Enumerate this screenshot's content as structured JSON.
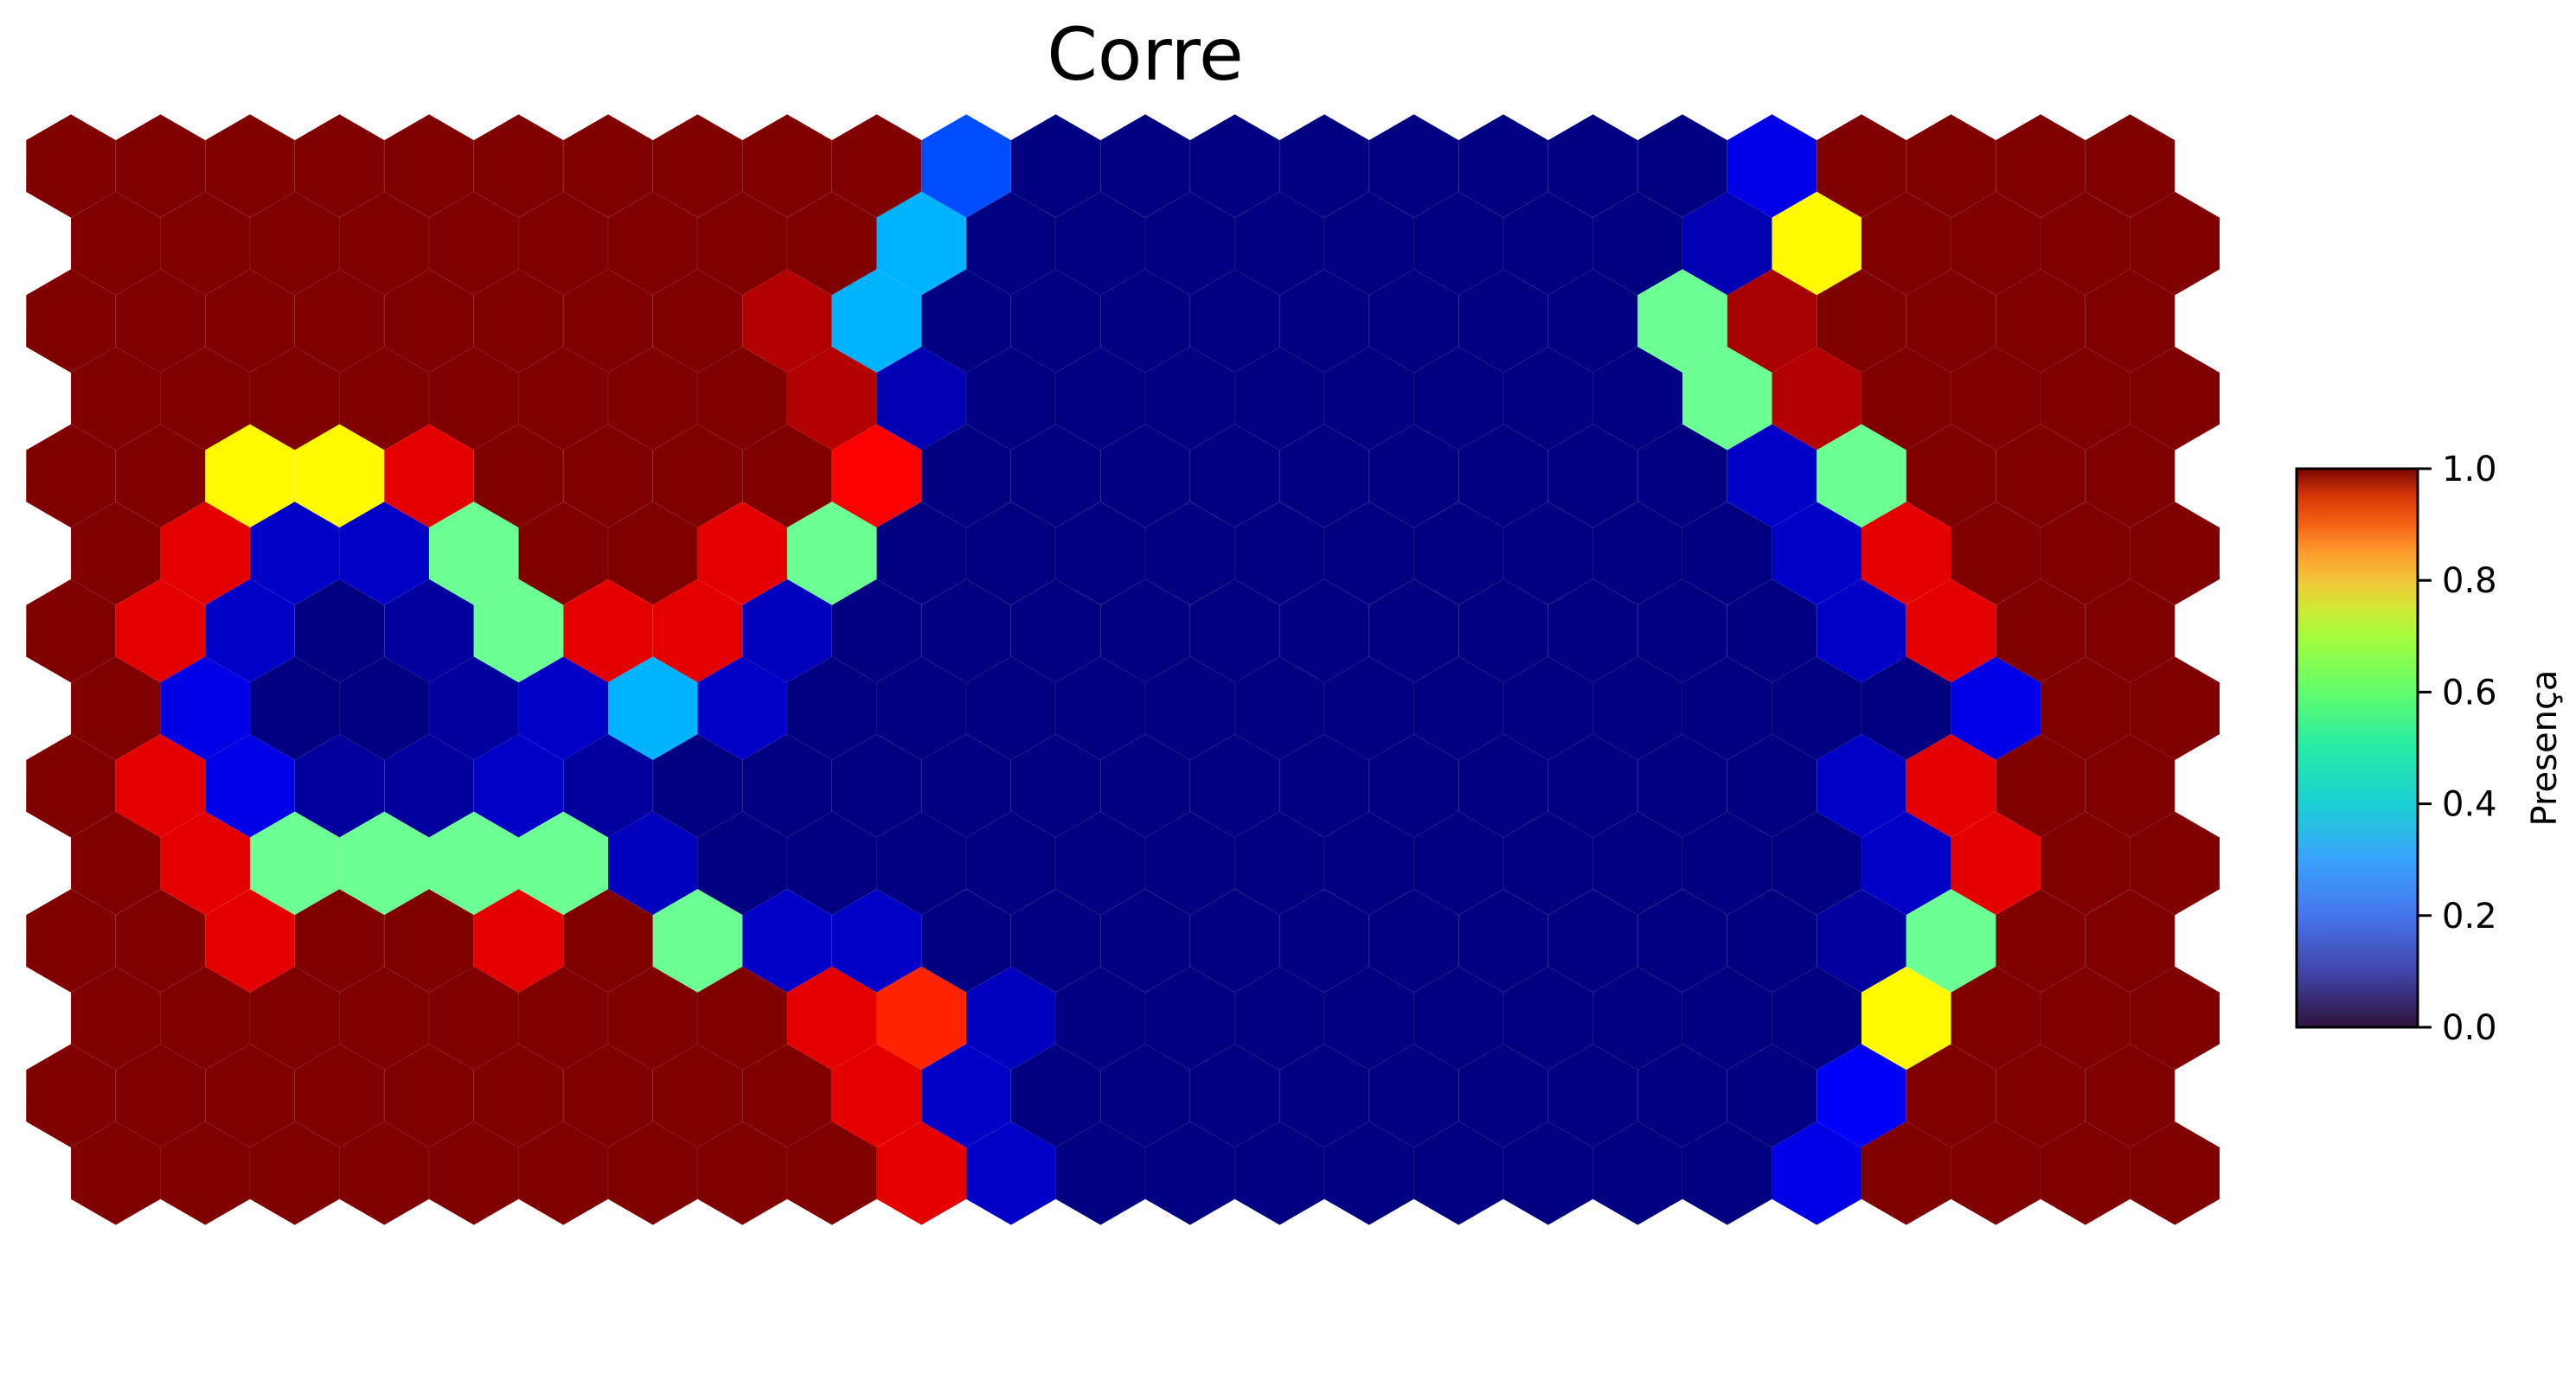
{
  "chart_data": {
    "type": "heatmap",
    "subtype": "hexagonal-som",
    "title": "Corre",
    "colorbar": {
      "label": "Presença",
      "range": [
        0.0,
        1.0
      ],
      "ticks": [
        "0.0",
        "0.2",
        "0.4",
        "0.6",
        "0.8",
        "1.0"
      ],
      "colormap": "jet"
    },
    "rows": 14,
    "cols": 24,
    "grid": [
      [
        1,
        1,
        1,
        1,
        1,
        1,
        1,
        1,
        1,
        1,
        0.2,
        0,
        0,
        0,
        0,
        0,
        0,
        0,
        0,
        0.1,
        1,
        1,
        1,
        1
      ],
      [
        1,
        1,
        1,
        1,
        1,
        1,
        1,
        1,
        1,
        0.3,
        0,
        0,
        0,
        0,
        0,
        0,
        0,
        0,
        0.05,
        0.63,
        1,
        1,
        1,
        1
      ],
      [
        1,
        1,
        1,
        1,
        1,
        1,
        1,
        1,
        0.95,
        0.3,
        0,
        0,
        0,
        0,
        0,
        0,
        0,
        0,
        0.48,
        0.96,
        1,
        1,
        1,
        1
      ],
      [
        1,
        1,
        1,
        1,
        1,
        1,
        1,
        1,
        0.95,
        0.05,
        0,
        0,
        0,
        0,
        0,
        0,
        0,
        0,
        0.48,
        0.95,
        1,
        1,
        1,
        1
      ],
      [
        1,
        1,
        0.63,
        0.63,
        0.9,
        1,
        1,
        1,
        1,
        0.88,
        0,
        0,
        0,
        0,
        0,
        0,
        0,
        0,
        0,
        0.07,
        0.48,
        1,
        1,
        1
      ],
      [
        1,
        0.9,
        0.07,
        0.07,
        0.48,
        1,
        1,
        0.9,
        0.48,
        0,
        0,
        0,
        0,
        0,
        0,
        0,
        0,
        0,
        0,
        0.07,
        0.9,
        1,
        1,
        1
      ],
      [
        1,
        0.9,
        0.07,
        0,
        0.03,
        0.48,
        0.9,
        0.9,
        0.06,
        0,
        0,
        0,
        0,
        0,
        0,
        0,
        0,
        0,
        0,
        0,
        0.07,
        0.9,
        1,
        1
      ],
      [
        1,
        0.1,
        0,
        0,
        0.03,
        0.07,
        0.3,
        0.07,
        0,
        0,
        0,
        0,
        0,
        0,
        0,
        0,
        0,
        0,
        0,
        0,
        0,
        0.1,
        1,
        1
      ],
      [
        1,
        0.9,
        0.1,
        0.03,
        0.03,
        0.07,
        0.03,
        0,
        0,
        0,
        0,
        0,
        0,
        0,
        0,
        0,
        0,
        0,
        0,
        0,
        0.07,
        0.9,
        1,
        1
      ],
      [
        1,
        0.9,
        0.48,
        0.48,
        0.48,
        0.48,
        0.06,
        0,
        0,
        0,
        0,
        0,
        0,
        0,
        0,
        0,
        0,
        0,
        0,
        0,
        0.07,
        0.9,
        1,
        1
      ],
      [
        1,
        1,
        0.9,
        1,
        1,
        0.9,
        1,
        0.48,
        0.07,
        0.07,
        0,
        0,
        0,
        0,
        0,
        0,
        0,
        0,
        0,
        0,
        0.03,
        0.48,
        1,
        1
      ],
      [
        1,
        1,
        1,
        1,
        1,
        1,
        1,
        1,
        0.9,
        0.84,
        0.06,
        0,
        0,
        0,
        0,
        0,
        0,
        0,
        0,
        0,
        0.63,
        1,
        1,
        1
      ],
      [
        1,
        1,
        1,
        1,
        1,
        1,
        1,
        1,
        1,
        0.9,
        0.07,
        0,
        0,
        0,
        0,
        0,
        0,
        0,
        0,
        0,
        0.12,
        1,
        1,
        1
      ],
      [
        1,
        1,
        1,
        1,
        1,
        1,
        1,
        1,
        1,
        0.9,
        0.07,
        0,
        0,
        0,
        0,
        0,
        0,
        0,
        0,
        0.1,
        1,
        1,
        1,
        1
      ]
    ]
  }
}
